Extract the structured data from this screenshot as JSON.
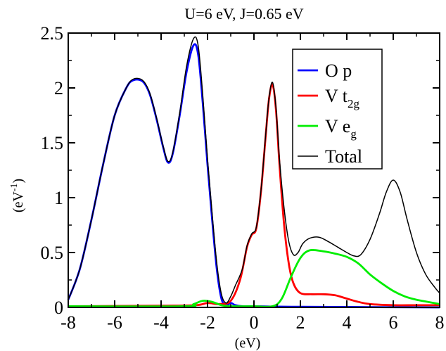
{
  "chart_data": {
    "type": "line",
    "title": "U=6 eV, J=0.65 eV",
    "xlabel": "(eV)",
    "ylabel": {
      "base": "(eV",
      "sup": "-1",
      "close": ")"
    },
    "xlim": [
      -8,
      8
    ],
    "ylim": [
      0,
      2.5
    ],
    "xticks": [
      -8,
      -6,
      -4,
      -2,
      0,
      2,
      4,
      6,
      8
    ],
    "yticks": [
      0,
      0.5,
      1,
      1.5,
      2,
      2.5
    ],
    "xtick_labels": [
      "-8",
      "-6",
      "-4",
      "-2",
      "0",
      "2",
      "4",
      "6",
      "8"
    ],
    "ytick_labels": [
      "0",
      "0.5",
      "1",
      "1.5",
      "2",
      "2.5"
    ],
    "legend_position": "top-right",
    "grid": false,
    "series": [
      {
        "name": "O p",
        "legend": {
          "main": "O p",
          "sub": ""
        },
        "color": "#0000ff",
        "points": [
          [
            -8,
            0.07
          ],
          [
            -7.5,
            0.35
          ],
          [
            -7,
            0.8
          ],
          [
            -6.5,
            1.3
          ],
          [
            -6,
            1.75
          ],
          [
            -5.5,
            2.0
          ],
          [
            -5.2,
            2.07
          ],
          [
            -4.8,
            2.06
          ],
          [
            -4.5,
            1.95
          ],
          [
            -4.2,
            1.72
          ],
          [
            -3.9,
            1.45
          ],
          [
            -3.7,
            1.32
          ],
          [
            -3.5,
            1.4
          ],
          [
            -3.2,
            1.75
          ],
          [
            -2.9,
            2.15
          ],
          [
            -2.6,
            2.39
          ],
          [
            -2.4,
            2.3
          ],
          [
            -2.2,
            1.85
          ],
          [
            -2.0,
            1.3
          ],
          [
            -1.8,
            0.8
          ],
          [
            -1.6,
            0.35
          ],
          [
            -1.4,
            0.08
          ],
          [
            -1.2,
            0.02
          ],
          [
            -1.0,
            0.04
          ],
          [
            -0.8,
            0.02
          ],
          [
            -0.5,
            0.01
          ],
          [
            0,
            0.01
          ],
          [
            2,
            0.005
          ],
          [
            8,
            0.0
          ]
        ]
      },
      {
        "name": "V t_2g",
        "legend": {
          "main": "V t",
          "sub": "2g"
        },
        "color": "#ff0000",
        "points": [
          [
            -8,
            0.01
          ],
          [
            -4,
            0.015
          ],
          [
            -2.5,
            0.02
          ],
          [
            -2,
            0.04
          ],
          [
            -1.5,
            0.03
          ],
          [
            -1,
            0.06
          ],
          [
            -0.6,
            0.25
          ],
          [
            -0.3,
            0.55
          ],
          [
            -0.1,
            0.66
          ],
          [
            0.1,
            0.72
          ],
          [
            0.3,
            1.05
          ],
          [
            0.5,
            1.55
          ],
          [
            0.65,
            1.9
          ],
          [
            0.8,
            2.03
          ],
          [
            0.95,
            1.8
          ],
          [
            1.1,
            1.3
          ],
          [
            1.3,
            0.75
          ],
          [
            1.5,
            0.4
          ],
          [
            1.7,
            0.22
          ],
          [
            2.0,
            0.13
          ],
          [
            2.5,
            0.12
          ],
          [
            3.0,
            0.12
          ],
          [
            3.5,
            0.11
          ],
          [
            4,
            0.08
          ],
          [
            4.5,
            0.05
          ],
          [
            5,
            0.03
          ],
          [
            6,
            0.02
          ],
          [
            7,
            0.02
          ],
          [
            8,
            0.02
          ]
        ]
      },
      {
        "name": "V e_g",
        "legend": {
          "main": "V e",
          "sub": "g"
        },
        "color": "#00ee00",
        "points": [
          [
            -8,
            0.01
          ],
          [
            -3,
            0.01
          ],
          [
            -2.6,
            0.03
          ],
          [
            -2.2,
            0.06
          ],
          [
            -1.8,
            0.05
          ],
          [
            -1.4,
            0.02
          ],
          [
            -1.0,
            0.01
          ],
          [
            0,
            0.01
          ],
          [
            0.8,
            0.01
          ],
          [
            1.2,
            0.08
          ],
          [
            1.6,
            0.28
          ],
          [
            2.0,
            0.45
          ],
          [
            2.4,
            0.52
          ],
          [
            3.0,
            0.51
          ],
          [
            3.5,
            0.49
          ],
          [
            4.0,
            0.46
          ],
          [
            4.5,
            0.4
          ],
          [
            5.0,
            0.3
          ],
          [
            5.5,
            0.22
          ],
          [
            6.0,
            0.15
          ],
          [
            6.5,
            0.1
          ],
          [
            7.0,
            0.07
          ],
          [
            7.5,
            0.05
          ],
          [
            8,
            0.03
          ]
        ]
      },
      {
        "name": "Total",
        "legend": {
          "main": "Total",
          "sub": ""
        },
        "color": "#000000",
        "points": [
          [
            -8,
            0.07
          ],
          [
            -7.5,
            0.35
          ],
          [
            -7,
            0.8
          ],
          [
            -6.5,
            1.3
          ],
          [
            -6,
            1.75
          ],
          [
            -5.5,
            2.0
          ],
          [
            -5.2,
            2.08
          ],
          [
            -4.8,
            2.07
          ],
          [
            -4.5,
            1.96
          ],
          [
            -4.2,
            1.73
          ],
          [
            -3.9,
            1.46
          ],
          [
            -3.7,
            1.33
          ],
          [
            -3.5,
            1.41
          ],
          [
            -3.2,
            1.77
          ],
          [
            -2.9,
            2.2
          ],
          [
            -2.6,
            2.45
          ],
          [
            -2.4,
            2.38
          ],
          [
            -2.2,
            1.92
          ],
          [
            -2.0,
            1.35
          ],
          [
            -1.8,
            0.85
          ],
          [
            -1.6,
            0.4
          ],
          [
            -1.4,
            0.12
          ],
          [
            -1.2,
            0.04
          ],
          [
            -1.0,
            0.1
          ],
          [
            -0.8,
            0.2
          ],
          [
            -0.5,
            0.35
          ],
          [
            -0.3,
            0.56
          ],
          [
            -0.1,
            0.67
          ],
          [
            0.1,
            0.73
          ],
          [
            0.3,
            1.06
          ],
          [
            0.5,
            1.56
          ],
          [
            0.65,
            1.91
          ],
          [
            0.8,
            2.05
          ],
          [
            0.95,
            1.82
          ],
          [
            1.1,
            1.35
          ],
          [
            1.3,
            0.9
          ],
          [
            1.5,
            0.6
          ],
          [
            1.7,
            0.48
          ],
          [
            1.9,
            0.5
          ],
          [
            2.1,
            0.58
          ],
          [
            2.4,
            0.63
          ],
          [
            2.8,
            0.64
          ],
          [
            3.2,
            0.6
          ],
          [
            3.6,
            0.55
          ],
          [
            4.0,
            0.5
          ],
          [
            4.3,
            0.47
          ],
          [
            4.6,
            0.48
          ],
          [
            5.0,
            0.62
          ],
          [
            5.4,
            0.85
          ],
          [
            5.7,
            1.05
          ],
          [
            6.0,
            1.16
          ],
          [
            6.3,
            1.05
          ],
          [
            6.6,
            0.8
          ],
          [
            7.0,
            0.5
          ],
          [
            7.4,
            0.3
          ],
          [
            7.8,
            0.18
          ],
          [
            8,
            0.13
          ]
        ]
      }
    ]
  }
}
